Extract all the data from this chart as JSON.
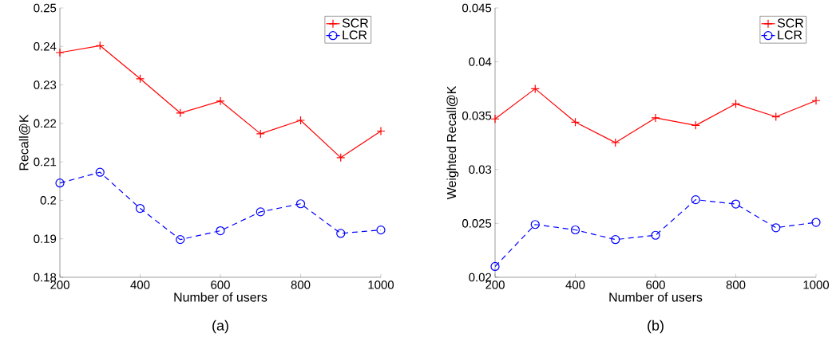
{
  "chart_data": [
    {
      "type": "line",
      "xlabel": "Number of users",
      "ylabel": "Recall@K",
      "x": [
        200,
        300,
        400,
        500,
        600,
        700,
        800,
        900,
        1000
      ],
      "series": [
        {
          "name": "SCR",
          "color": "#ff0000",
          "marker": "cross",
          "line_style": "solid",
          "values": [
            0.2384,
            0.2402,
            0.2316,
            0.2227,
            0.2258,
            0.2173,
            0.2208,
            0.2111,
            0.218
          ]
        },
        {
          "name": "LCR",
          "color": "#0000ff",
          "marker": "circle",
          "line_style": "dashed",
          "values": [
            0.2045,
            0.2073,
            0.1979,
            0.1898,
            0.1921,
            0.197,
            0.1991,
            0.1914,
            0.1923
          ]
        }
      ],
      "xlim": [
        200,
        1000
      ],
      "xticks": [
        200,
        400,
        600,
        800,
        1000
      ],
      "ylim": [
        0.18,
        0.25
      ],
      "yticks": [
        0.18,
        0.19,
        0.2,
        0.21,
        0.22,
        0.23,
        0.24,
        0.25
      ],
      "legend": "top right",
      "grid": false,
      "annotations": [
        "(a)"
      ]
    },
    {
      "type": "line",
      "xlabel": "Number of users",
      "ylabel": "Weighted Recall@K",
      "x": [
        200,
        300,
        400,
        500,
        600,
        700,
        800,
        900,
        1000
      ],
      "series": [
        {
          "name": "SCR",
          "color": "#ff0000",
          "marker": "cross",
          "line_style": "solid",
          "values": [
            0.0347,
            0.0375,
            0.0344,
            0.0325,
            0.0348,
            0.0341,
            0.0361,
            0.0349,
            0.0364
          ]
        },
        {
          "name": "LCR",
          "color": "#0000ff",
          "marker": "circle",
          "line_style": "dashed",
          "values": [
            0.021,
            0.0249,
            0.0244,
            0.0235,
            0.0239,
            0.0272,
            0.0268,
            0.0246,
            0.0251
          ]
        }
      ],
      "xlim": [
        200,
        1000
      ],
      "xticks": [
        200,
        400,
        600,
        800,
        1000
      ],
      "ylim": [
        0.02,
        0.045
      ],
      "yticks": [
        0.02,
        0.025,
        0.03,
        0.035,
        0.04,
        0.045
      ],
      "legend": "top right",
      "grid": false,
      "annotations": [
        "(b)"
      ]
    }
  ]
}
